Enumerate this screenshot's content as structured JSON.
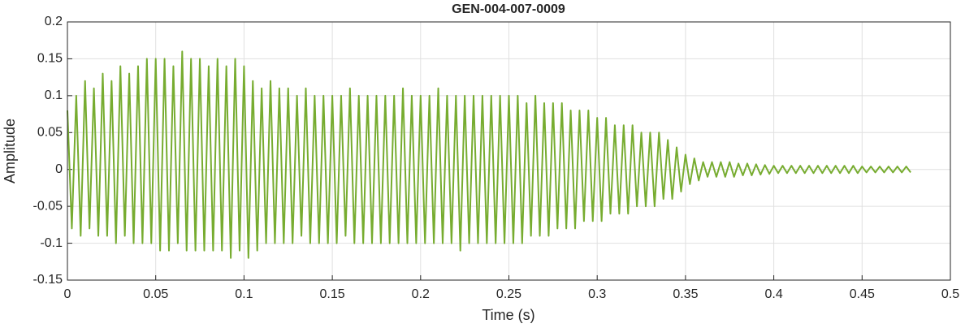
{
  "chart_data": {
    "type": "line",
    "title": "GEN-004-007-0009",
    "xlabel": "Time (s)",
    "ylabel": "Amplitude",
    "x": [
      0,
      0.0025,
      0.005,
      0.0075,
      0.01,
      0.0125,
      0.015,
      0.0175,
      0.02,
      0.0225,
      0.025,
      0.0275,
      0.03,
      0.0325,
      0.035,
      0.0375,
      0.04,
      0.0425,
      0.045,
      0.0475,
      0.05,
      0.0525,
      0.055,
      0.0575,
      0.06,
      0.0625,
      0.065,
      0.0675,
      0.07,
      0.0725,
      0.075,
      0.0775,
      0.08,
      0.0825,
      0.085,
      0.0875,
      0.09,
      0.0925,
      0.095,
      0.0975,
      0.1,
      0.1025,
      0.105,
      0.1075,
      0.11,
      0.1125,
      0.115,
      0.1175,
      0.12,
      0.1225,
      0.125,
      0.1275,
      0.13,
      0.1325,
      0.135,
      0.1375,
      0.14,
      0.1425,
      0.145,
      0.1475,
      0.15,
      0.1525,
      0.155,
      0.1575,
      0.16,
      0.1625,
      0.165,
      0.1675,
      0.17,
      0.1725,
      0.175,
      0.1775,
      0.18,
      0.1825,
      0.185,
      0.1875,
      0.19,
      0.1925,
      0.195,
      0.1975,
      0.2,
      0.2025,
      0.205,
      0.2075,
      0.21,
      0.2125,
      0.215,
      0.2175,
      0.22,
      0.2225,
      0.225,
      0.2275,
      0.23,
      0.2325,
      0.235,
      0.2375,
      0.24,
      0.2425,
      0.245,
      0.2475,
      0.25,
      0.2525,
      0.255,
      0.2575,
      0.26,
      0.2625,
      0.265,
      0.2675,
      0.27,
      0.2725,
      0.275,
      0.2775,
      0.28,
      0.2825,
      0.285,
      0.2875,
      0.29,
      0.2925,
      0.295,
      0.2975,
      0.3,
      0.3025,
      0.305,
      0.3075,
      0.31,
      0.3125,
      0.315,
      0.3175,
      0.32,
      0.3225,
      0.325,
      0.3275,
      0.33,
      0.3325,
      0.335,
      0.3375,
      0.34,
      0.3425,
      0.345,
      0.3475,
      0.35,
      0.3525,
      0.355,
      0.3575,
      0.36,
      0.3625,
      0.365,
      0.3675,
      0.37,
      0.3725,
      0.375,
      0.3775,
      0.38,
      0.3825,
      0.385,
      0.3875,
      0.39,
      0.3925,
      0.395,
      0.3975,
      0.4,
      0.4025,
      0.405,
      0.4075,
      0.41,
      0.4125,
      0.415,
      0.4175,
      0.42,
      0.4225,
      0.425,
      0.4275,
      0.43,
      0.4325,
      0.435,
      0.4375,
      0.44,
      0.4425,
      0.445,
      0.4475,
      0.45,
      0.4525,
      0.455,
      0.4575,
      0.46,
      0.4625,
      0.465,
      0.4675,
      0.47,
      0.4725,
      0.475,
      0.4775
    ],
    "values": [
      0.08,
      -0.08,
      0.1,
      -0.09,
      0.12,
      -0.08,
      0.11,
      -0.09,
      0.13,
      -0.09,
      0.12,
      -0.1,
      0.14,
      -0.09,
      0.13,
      -0.1,
      0.14,
      -0.1,
      0.15,
      -0.1,
      0.15,
      -0.11,
      0.15,
      -0.11,
      0.14,
      -0.1,
      0.16,
      -0.11,
      0.15,
      -0.11,
      0.15,
      -0.11,
      0.14,
      -0.11,
      0.15,
      -0.11,
      0.14,
      -0.12,
      0.15,
      -0.11,
      0.14,
      -0.12,
      0.12,
      -0.11,
      0.11,
      -0.1,
      0.12,
      -0.1,
      0.11,
      -0.1,
      0.11,
      -0.1,
      0.1,
      -0.09,
      0.11,
      -0.1,
      0.1,
      -0.1,
      0.1,
      -0.1,
      0.1,
      -0.1,
      0.1,
      -0.09,
      0.11,
      -0.1,
      0.1,
      -0.1,
      0.1,
      -0.1,
      0.1,
      -0.1,
      0.1,
      -0.1,
      0.1,
      -0.1,
      0.11,
      -0.1,
      0.1,
      -0.1,
      0.1,
      -0.1,
      0.1,
      -0.1,
      0.11,
      -0.1,
      0.1,
      -0.1,
      0.1,
      -0.11,
      0.1,
      -0.1,
      0.1,
      -0.1,
      0.1,
      -0.1,
      0.1,
      -0.1,
      0.1,
      -0.1,
      0.1,
      -0.1,
      0.1,
      -0.1,
      0.09,
      -0.09,
      0.1,
      -0.09,
      0.09,
      -0.09,
      0.09,
      -0.08,
      0.09,
      -0.08,
      0.08,
      -0.08,
      0.08,
      -0.07,
      0.08,
      -0.07,
      0.07,
      -0.07,
      0.07,
      -0.06,
      0.06,
      -0.06,
      0.06,
      -0.06,
      0.06,
      -0.05,
      0.05,
      -0.05,
      0.05,
      -0.05,
      0.05,
      -0.04,
      0.04,
      -0.04,
      0.03,
      -0.03,
      0.02,
      -0.02,
      0.015,
      -0.015,
      0.01,
      -0.01,
      0.01,
      -0.01,
      0.01,
      -0.01,
      0.01,
      -0.01,
      0.008,
      -0.008,
      0.008,
      -0.008,
      0.007,
      -0.007,
      0.006,
      -0.006,
      0.005,
      -0.005,
      0.005,
      -0.005,
      0.005,
      -0.005,
      0.005,
      -0.005,
      0.005,
      -0.005,
      0.005,
      -0.005,
      0.005,
      -0.005,
      0.005,
      -0.005,
      0.005,
      -0.005,
      0.005,
      -0.005,
      0.004,
      -0.004,
      0.004,
      -0.004,
      0.004,
      -0.004,
      0.004,
      -0.004,
      0.004,
      -0.004,
      0.004,
      -0.004
    ],
    "color": "#77ac30",
    "xlim": [
      0,
      0.5
    ],
    "xticks": [
      0,
      0.05,
      0.1,
      0.15,
      0.2,
      0.25,
      0.3,
      0.35,
      0.4,
      0.45,
      0.5
    ],
    "ylim": [
      -0.15,
      0.2
    ],
    "yticks": [
      -0.15,
      -0.1,
      -0.05,
      0,
      0.05,
      0.1,
      0.15,
      0.2
    ],
    "grid": true
  }
}
